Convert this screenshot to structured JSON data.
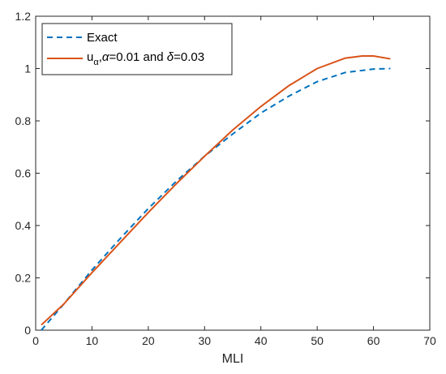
{
  "chart_data": {
    "type": "line",
    "xlabel": "MLI",
    "ylabel": "",
    "title": "",
    "xlim": [
      0,
      70
    ],
    "ylim": [
      0,
      1.2
    ],
    "xticks": [
      {
        "value": 0,
        "label": "0"
      },
      {
        "value": 10,
        "label": "10"
      },
      {
        "value": 20,
        "label": "20"
      },
      {
        "value": 30,
        "label": "30"
      },
      {
        "value": 40,
        "label": "40"
      },
      {
        "value": 50,
        "label": "50"
      },
      {
        "value": 60,
        "label": "60"
      },
      {
        "value": 70,
        "label": "70"
      }
    ],
    "yticks": [
      {
        "value": 0,
        "label": "0"
      },
      {
        "value": 0.2,
        "label": "0.2"
      },
      {
        "value": 0.4,
        "label": "0.4"
      },
      {
        "value": 0.6,
        "label": "0.6"
      },
      {
        "value": 0.8,
        "label": "0.8"
      },
      {
        "value": 1,
        "label": "1"
      },
      {
        "value": 1.2,
        "label": "1.2"
      }
    ],
    "grid": false,
    "legend_position": "top-left",
    "series": [
      {
        "name": "Exact",
        "color": "#0072BD",
        "style": "dashed",
        "x": [
          1,
          5,
          10,
          15,
          20,
          25,
          30,
          35,
          40,
          45,
          50,
          55,
          60,
          63
        ],
        "y": [
          0.0,
          0.1,
          0.23,
          0.35,
          0.465,
          0.57,
          0.665,
          0.75,
          0.83,
          0.895,
          0.95,
          0.985,
          0.998,
          1.0
        ]
      },
      {
        "name_parts": {
          "base": "u",
          "sub": "α",
          "rest1": ",",
          "alpha": "α",
          "rest2": "=0.01 and ",
          "delta": "δ",
          "rest3": "=0.03"
        },
        "color": "#D95319",
        "style": "solid",
        "x": [
          1,
          5,
          10,
          15,
          20,
          25,
          30,
          35,
          40,
          45,
          50,
          55,
          58,
          60,
          63
        ],
        "y": [
          0.02,
          0.1,
          0.22,
          0.335,
          0.45,
          0.56,
          0.665,
          0.765,
          0.855,
          0.935,
          1.0,
          1.04,
          1.048,
          1.048,
          1.037
        ]
      }
    ]
  }
}
